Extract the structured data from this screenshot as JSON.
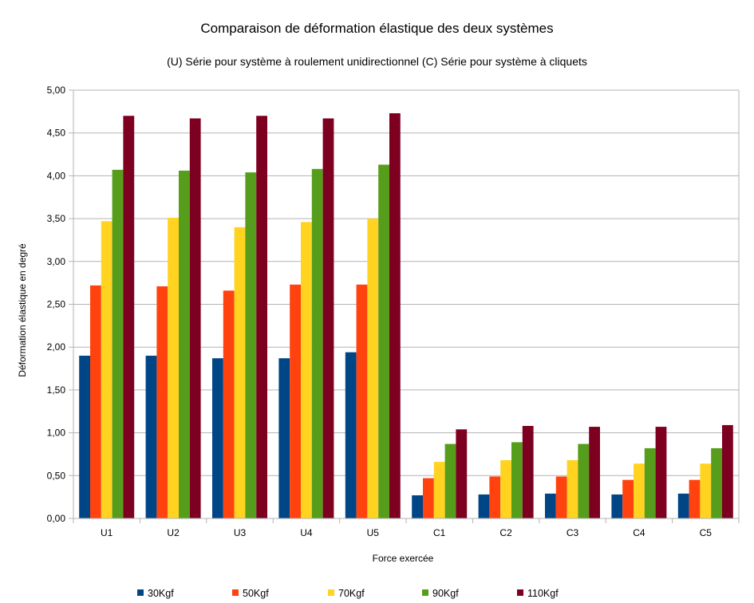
{
  "chart_data": {
    "type": "bar",
    "title": "Comparaison de déformation élastique des deux systèmes",
    "subtitle": "(U) Série pour système à roulement unidirectionnel (C) Série pour système à cliquets",
    "xlabel": "Force exercée",
    "ylabel": "Déformation élastique en degré",
    "ylim": [
      0,
      5
    ],
    "yticks": [
      "0,00",
      "0,50",
      "1,00",
      "1,50",
      "2,00",
      "2,50",
      "3,00",
      "3,50",
      "4,00",
      "4,50",
      "5,00"
    ],
    "grid": true,
    "legend_position": "bottom",
    "categories": [
      "U1",
      "U2",
      "U3",
      "U4",
      "U5",
      "C1",
      "C2",
      "C3",
      "C4",
      "C5"
    ],
    "series": [
      {
        "name": "30Kgf",
        "color": "#004586",
        "values": [
          1.9,
          1.9,
          1.87,
          1.87,
          1.94,
          0.27,
          0.28,
          0.29,
          0.28,
          0.29
        ]
      },
      {
        "name": "50Kgf",
        "color": "#ff420e",
        "values": [
          2.72,
          2.71,
          2.66,
          2.73,
          2.73,
          0.47,
          0.49,
          0.49,
          0.45,
          0.45
        ]
      },
      {
        "name": "70Kgf",
        "color": "#ffd320",
        "values": [
          3.47,
          3.51,
          3.4,
          3.46,
          3.5,
          0.66,
          0.68,
          0.68,
          0.64,
          0.64
        ]
      },
      {
        "name": "90Kgf",
        "color": "#579d1c",
        "values": [
          4.07,
          4.06,
          4.04,
          4.08,
          4.13,
          0.87,
          0.89,
          0.87,
          0.82,
          0.82
        ]
      },
      {
        "name": "110Kgf",
        "color": "#7e0021",
        "values": [
          4.7,
          4.67,
          4.7,
          4.67,
          4.73,
          1.04,
          1.08,
          1.07,
          1.07,
          1.09
        ]
      }
    ]
  }
}
